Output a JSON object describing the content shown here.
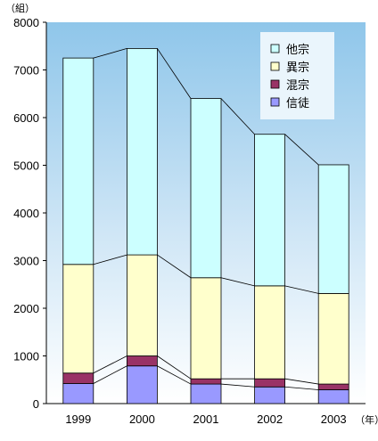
{
  "chart_data": {
    "type": "bar",
    "stacked": true,
    "categories": [
      "1999",
      "2000",
      "2001",
      "2002",
      "2003"
    ],
    "series": [
      {
        "name": "信徒",
        "color": "#9999ff",
        "values": [
          420,
          790,
          410,
          350,
          290
        ]
      },
      {
        "name": "混宗",
        "color": "#993366",
        "values": [
          220,
          210,
          110,
          170,
          120
        ]
      },
      {
        "name": "異宗",
        "color": "#ffffcc",
        "values": [
          2280,
          2120,
          2120,
          1950,
          1900
        ]
      },
      {
        "name": "他宗",
        "color": "#ccffff",
        "values": [
          4330,
          4330,
          3760,
          3180,
          2700
        ]
      }
    ],
    "legend_order": [
      "他宗",
      "異宗",
      "混宗",
      "信徒"
    ],
    "legend_position": "top-right",
    "y_unit": "（組）",
    "x_unit": "（年）",
    "yticks": [
      0,
      1000,
      2000,
      3000,
      4000,
      5000,
      6000,
      7000,
      8000
    ],
    "ylim": [
      0,
      8000
    ],
    "title": "",
    "xlabel": "",
    "ylabel": "",
    "grid": false,
    "connector_lines": true,
    "plot_background": "gradient light-blue to white"
  }
}
